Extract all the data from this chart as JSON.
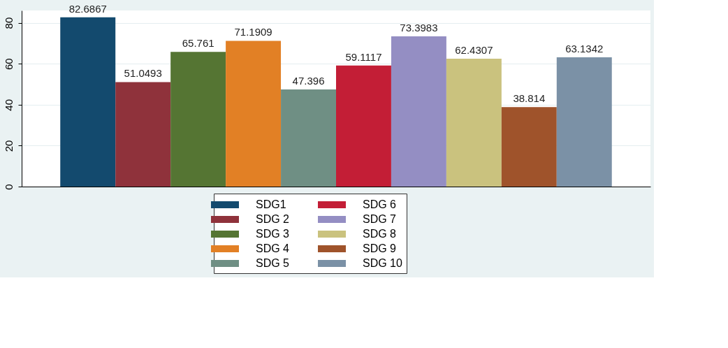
{
  "chart_data": {
    "type": "bar",
    "categories": [
      null
    ],
    "ylim": [
      0,
      86
    ],
    "yticks": [
      0,
      20,
      40,
      60,
      80
    ],
    "grid": "y",
    "legend": "bottom",
    "data_labels": true,
    "series": [
      {
        "name": "SDG1",
        "color": "#134a6e",
        "values": [
          82.6867
        ]
      },
      {
        "name": "SDG 2",
        "color": "#8f323b",
        "values": [
          51.0493
        ]
      },
      {
        "name": "SDG 3",
        "color": "#557533",
        "values": [
          65.761
        ]
      },
      {
        "name": "SDG 4",
        "color": "#e28025",
        "values": [
          71.1909
        ]
      },
      {
        "name": "SDG 5",
        "color": "#6f8f84",
        "values": [
          47.396
        ]
      },
      {
        "name": "SDG 6",
        "color": "#c31e36",
        "values": [
          59.1117
        ]
      },
      {
        "name": "SDG 7",
        "color": "#948ec3",
        "values": [
          73.3983
        ]
      },
      {
        "name": "SDG 8",
        "color": "#cac27e",
        "values": [
          62.4307
        ]
      },
      {
        "name": "SDG 9",
        "color": "#9f532b",
        "values": [
          38.814
        ]
      },
      {
        "name": "SDG 10",
        "color": "#7b91a6",
        "values": [
          63.1342
        ]
      }
    ]
  }
}
